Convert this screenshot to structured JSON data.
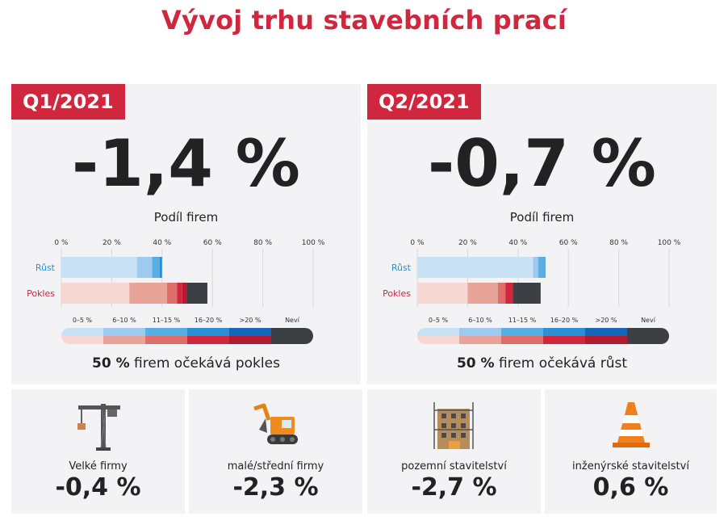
{
  "title": "Vývoj trhu stavebních prací",
  "panels": [
    {
      "badge": "Q1/2021",
      "big_value": "-1,4 %",
      "share_title": "Podíl firem",
      "note_bold": "50 %",
      "note_rest": " firem očekává pokles"
    },
    {
      "badge": "Q2/2021",
      "big_value": "-0,7 %",
      "share_title": "Podíl firem",
      "note_bold": "50 %",
      "note_rest": " firem očekává růst"
    }
  ],
  "cards": [
    {
      "label": "Velké firmy",
      "value": "-0,4 %",
      "icon": "crane-icon"
    },
    {
      "label": "malé/střední firmy",
      "value": "-2,3 %",
      "icon": "excavator-icon"
    },
    {
      "label": "pozemní stavitelství",
      "value": "-2,7 %",
      "icon": "building-construction-icon"
    },
    {
      "label": "inženýrské stavitelství",
      "value": "0,6 %",
      "icon": "traffic-cone-icon"
    }
  ],
  "colors": {
    "accent": "#d0263e",
    "growth": [
      "#c8e1f4",
      "#9dcaee",
      "#5aaee6",
      "#2a90d6",
      "#1565b8"
    ],
    "decline": [
      "#f6d7d2",
      "#e9a49a",
      "#df6e6a",
      "#d0263e",
      "#b21a30"
    ],
    "unknown": "#3c3f44"
  },
  "chart_data": [
    {
      "type": "bar",
      "title": "Podíl firem",
      "period": "Q1/2021",
      "categories": [
        "Růst",
        "Pokles"
      ],
      "x_ticks": [
        "0 %",
        "20 %",
        "40 %",
        "60 %",
        "80 %",
        "100 %"
      ],
      "xlim": [
        0,
        100
      ],
      "segment_labels": [
        "0–5 %",
        "6–10 %",
        "11–15 %",
        "16–20 %",
        ">20 %",
        "Neví"
      ],
      "series": [
        {
          "name": "0–5 %",
          "values": [
            30,
            27
          ]
        },
        {
          "name": "6–10 %",
          "values": [
            6,
            15
          ]
        },
        {
          "name": "11–15 %",
          "values": [
            3,
            4
          ]
        },
        {
          "name": "16–20 %",
          "values": [
            1,
            2
          ]
        },
        {
          "name": ">20 %",
          "values": [
            0,
            2
          ]
        },
        {
          "name": "Neví",
          "values": [
            0,
            8
          ]
        }
      ]
    },
    {
      "type": "bar",
      "title": "Podíl firem",
      "period": "Q2/2021",
      "categories": [
        "Růst",
        "Pokles"
      ],
      "x_ticks": [
        "0 %",
        "20 %",
        "40 %",
        "60 %",
        "80 %",
        "100 %"
      ],
      "xlim": [
        0,
        100
      ],
      "segment_labels": [
        "0–5 %",
        "6–10 %",
        "11–15 %",
        "16–20 %",
        ">20 %",
        "Neví"
      ],
      "series": [
        {
          "name": "0–5 %",
          "values": [
            46,
            20
          ]
        },
        {
          "name": "6–10 %",
          "values": [
            2,
            12
          ]
        },
        {
          "name": "11–15 %",
          "values": [
            3,
            3
          ]
        },
        {
          "name": "16–20 %",
          "values": [
            0,
            3
          ]
        },
        {
          "name": ">20 %",
          "values": [
            0,
            0
          ]
        },
        {
          "name": "Neví",
          "values": [
            0,
            11
          ]
        }
      ]
    }
  ]
}
